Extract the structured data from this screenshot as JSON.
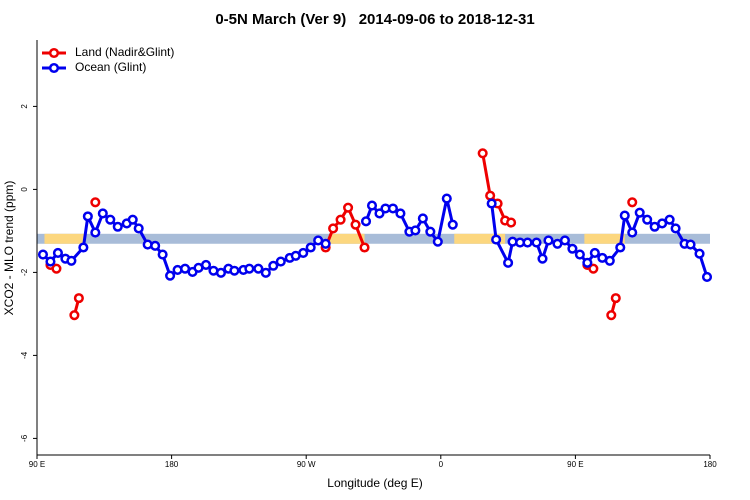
{
  "chart_data": {
    "type": "line",
    "title": "0-5N March (Ver 9)   2014-09-06 to 2018-12-31",
    "xlabel": "Longitude (deg E)",
    "ylabel": "XCO2 - MLO trend (ppm)",
    "xlim": [
      90,
      540
    ],
    "xticks": [
      {
        "value": 90,
        "label": "90 E"
      },
      {
        "value": 180,
        "label": "180"
      },
      {
        "value": 270,
        "label": "90 W"
      },
      {
        "value": 360,
        "label": "0"
      },
      {
        "value": 450,
        "label": "90 E"
      },
      {
        "value": 540,
        "label": "180"
      }
    ],
    "ylim": [
      -6.4,
      3.6
    ],
    "yticks": [
      -6,
      -4,
      -2,
      0,
      2
    ],
    "legend": "top-left",
    "band_ylim": [
      -1.31,
      -1.07
    ],
    "band_color": "#a8bcd8",
    "land_color": "#fcd77f",
    "land_ranges": [
      [
        95,
        122
      ],
      [
        286,
        309
      ],
      [
        369,
        403
      ],
      [
        456,
        483
      ]
    ],
    "series": [
      {
        "name": "Land (Nadir&Glint)",
        "color": "#ee0000",
        "x": [
          99,
          103,
          null,
          115,
          118,
          null,
          129,
          null,
          283,
          288,
          293,
          298,
          303,
          309,
          null,
          388,
          393,
          398,
          403,
          407,
          null,
          458,
          462,
          null,
          474,
          477,
          null,
          488
        ],
        "values": [
          -1.82,
          -1.91,
          null,
          -3.03,
          -2.62,
          null,
          -0.31,
          null,
          -1.4,
          -0.94,
          -0.73,
          -0.44,
          -0.85,
          -1.4,
          null,
          0.87,
          -0.15,
          -0.34,
          -0.75,
          -0.8,
          null,
          -1.82,
          -1.91,
          null,
          -3.03,
          -2.62,
          null,
          -0.31
        ]
      },
      {
        "name": "Ocean (Glint)",
        "color": "#0000ee",
        "x": [
          94,
          99,
          104,
          109,
          113,
          121,
          124,
          129,
          134,
          139,
          144,
          150,
          154,
          158,
          164,
          169,
          174,
          179,
          184,
          189,
          194,
          198,
          203,
          208,
          213,
          218,
          222,
          228,
          232,
          238,
          243,
          248,
          253,
          259,
          263,
          268,
          273,
          278,
          283,
          null,
          310,
          314,
          319,
          323,
          328,
          333,
          339,
          343,
          348,
          353,
          358,
          364,
          368,
          null,
          394,
          397,
          405,
          408,
          413,
          418,
          424,
          428,
          432,
          438,
          443,
          448,
          453,
          458,
          463,
          468,
          473,
          480,
          483,
          488,
          493,
          498,
          503,
          508,
          513,
          517,
          523,
          527,
          533,
          538
        ],
        "values": [
          -1.57,
          -1.74,
          -1.53,
          -1.67,
          -1.72,
          -1.4,
          -0.65,
          -1.04,
          -0.58,
          -0.73,
          -0.9,
          -0.82,
          -0.73,
          -0.94,
          -1.33,
          -1.36,
          -1.57,
          -2.08,
          -1.94,
          -1.91,
          -1.99,
          -1.89,
          -1.82,
          -1.96,
          -2.01,
          -1.91,
          -1.96,
          -1.94,
          -1.91,
          -1.91,
          -2.01,
          -1.84,
          -1.74,
          -1.65,
          -1.6,
          -1.53,
          -1.4,
          -1.23,
          -1.31,
          null,
          -0.77,
          -0.39,
          -0.58,
          -0.46,
          -0.46,
          -0.58,
          -1.02,
          -0.99,
          -0.7,
          -1.02,
          -1.26,
          -0.22,
          -0.85,
          null,
          -0.34,
          -1.21,
          -1.77,
          -1.26,
          -1.28,
          -1.28,
          -1.28,
          -1.67,
          -1.23,
          -1.31,
          -1.23,
          -1.43,
          -1.57,
          -1.77,
          -1.53,
          -1.65,
          -1.72,
          -1.4,
          -0.63,
          -1.04,
          -0.56,
          -0.73,
          -0.9,
          -0.82,
          -0.73,
          -0.94,
          -1.31,
          -1.33,
          -1.55,
          -2.11
        ]
      }
    ]
  }
}
